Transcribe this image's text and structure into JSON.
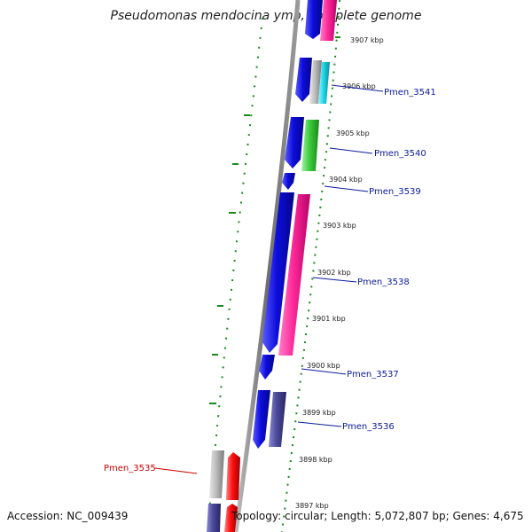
{
  "title": "Pseudomonas mendocina ymp, complete genome",
  "footer": {
    "accession": "Accession: NC_009439",
    "topology": "Topology: circular; Length: 5,072,807 bp; Genes: 4,675"
  },
  "colors": {
    "backbone": "#7f7f7f",
    "dots": "#1a8a1a",
    "blue": "#0d0ddc",
    "pink": "#ff2a9a",
    "gray": "#b8b8b8",
    "cyan": "#1fd6e8",
    "green": "#3ccd3c",
    "slate": "#4a4a9a",
    "red": "#ff1010",
    "label_blue": "#0b1a9e",
    "label_red": "#c80000"
  },
  "ticks": [
    "3907 kbp",
    "3906 kbp",
    "3905 kbp",
    "3904 kbp",
    "3903 kbp",
    "3902 kbp",
    "3901 kbp",
    "3900 kbp",
    "3899 kbp",
    "3898 kbp",
    "3897 kbp"
  ],
  "gene_labels": [
    "Pmen_3541",
    "Pmen_3540",
    "Pmen_3539",
    "Pmen_3538",
    "Pmen_3537",
    "Pmen_3536",
    "Pmen_3535"
  ]
}
